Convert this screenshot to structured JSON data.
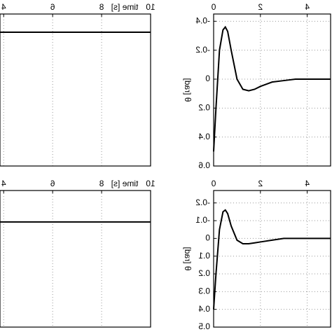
{
  "chart_data": [
    {
      "type": "line",
      "xlabel": "time [s]",
      "x": [
        3.85,
        10
      ],
      "series": [
        {
          "values": [
            0.88,
            0.88
          ]
        }
      ],
      "xlim": [
        3.85,
        10
      ],
      "ylim": [
        0,
        1
      ],
      "xticks": [
        4,
        6,
        8,
        10
      ],
      "grid": true,
      "color": "#000000"
    },
    {
      "type": "line",
      "ylabel": "θ [rad]",
      "x": [
        0,
        0.1,
        0.25,
        0.4,
        0.5,
        0.6,
        0.75,
        1,
        1.25,
        1.5,
        1.75,
        2,
        2.5,
        3,
        3.5,
        4,
        4.5,
        5
      ],
      "series": [
        {
          "values": [
            0.5,
            0.2,
            -0.2,
            -0.34,
            -0.36,
            -0.33,
            -0.2,
            0,
            0.07,
            0.08,
            0.07,
            0.05,
            0.02,
            0.01,
            0,
            0,
            0,
            0
          ]
        }
      ],
      "xlim": [
        0,
        5
      ],
      "ylim": [
        -0.45,
        0.6
      ],
      "xticks": [
        0,
        2,
        4
      ],
      "yticks": [
        -0.4,
        -0.2,
        0,
        0.2,
        0.4,
        0.6
      ],
      "y_reversed": true,
      "grid": true,
      "color": "#000000"
    },
    {
      "type": "line",
      "xlabel": "time [s]",
      "x": [
        3.85,
        10
      ],
      "series": [
        {
          "values": [
            0.77,
            0.77
          ]
        }
      ],
      "xlim": [
        3.85,
        10
      ],
      "ylim": [
        0,
        1
      ],
      "xticks": [
        4,
        6,
        8,
        10
      ],
      "grid": true,
      "color": "#000000"
    },
    {
      "type": "line",
      "ylabel": "θ [rad]",
      "x": [
        0,
        0.1,
        0.25,
        0.4,
        0.5,
        0.6,
        0.75,
        1,
        1.25,
        1.5,
        1.75,
        2,
        2.5,
        3,
        3.5,
        4,
        4.5,
        5
      ],
      "series": [
        {
          "values": [
            0.4,
            0.2,
            -0.05,
            -0.15,
            -0.16,
            -0.14,
            -0.07,
            0.01,
            0.03,
            0.03,
            0.025,
            0.02,
            0.01,
            0,
            0,
            0,
            0,
            0
          ]
        }
      ],
      "xlim": [
        0,
        5
      ],
      "ylim": [
        -0.27,
        0.5
      ],
      "xticks": [
        0,
        2,
        4
      ],
      "yticks": [
        -0.2,
        -0.1,
        0,
        0.1,
        0.2,
        0.3,
        0.4,
        0.5
      ],
      "y_reversed": true,
      "grid": true,
      "color": "#000000"
    }
  ]
}
